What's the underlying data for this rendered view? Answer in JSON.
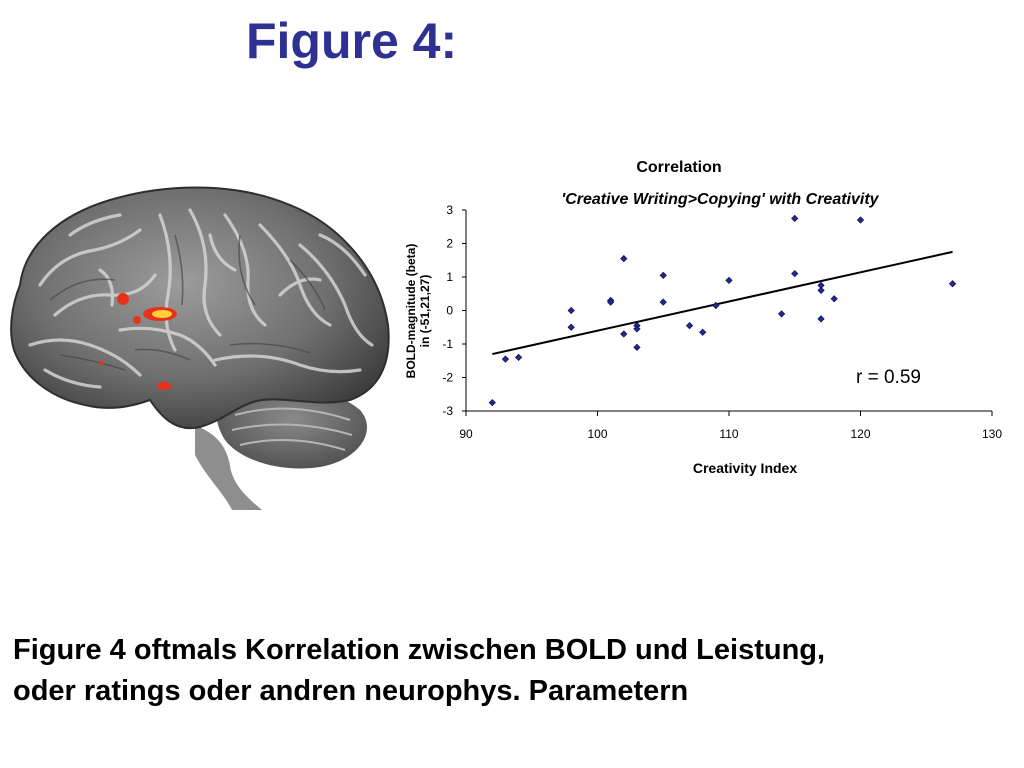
{
  "slide": {
    "title": "Figure 4:",
    "caption_lines": [
      "Figure 4 oftmals Korrelation zwischen BOLD und Leistung,",
      "oder ratings oder andren neurophys. Parametern"
    ]
  },
  "colors": {
    "title": "#2e3192",
    "point": "#1f2a8c",
    "regression_line": "#000000",
    "activation": "#e8311a",
    "activation_hot": "#ffd23a"
  },
  "chart_data": {
    "type": "scatter",
    "title": "Correlation",
    "subtitle": "'Creative Writing>Copying' with Creativity",
    "xlabel": "Creativity Index",
    "ylabel_lines": [
      "BOLD-magnitude (beta)",
      "in (-51,21,27)"
    ],
    "xlim": [
      90,
      130
    ],
    "ylim": [
      -3,
      3
    ],
    "x_ticks": [
      90,
      100,
      110,
      120,
      130
    ],
    "y_ticks": [
      3,
      2,
      1,
      0,
      -1,
      -2,
      -3
    ],
    "grid": false,
    "annotation": "r = 0.59",
    "regression_line": {
      "x": [
        92,
        127
      ],
      "y": [
        -1.3,
        1.75
      ]
    },
    "points": [
      {
        "x": 92,
        "y": -2.75
      },
      {
        "x": 93,
        "y": -1.45
      },
      {
        "x": 94,
        "y": -1.4
      },
      {
        "x": 98,
        "y": 0
      },
      {
        "x": 98,
        "y": -0.5
      },
      {
        "x": 101,
        "y": 0.3
      },
      {
        "x": 101,
        "y": 0.25
      },
      {
        "x": 102,
        "y": 1.55
      },
      {
        "x": 102,
        "y": -0.7
      },
      {
        "x": 103,
        "y": -0.45
      },
      {
        "x": 103,
        "y": -0.55
      },
      {
        "x": 103,
        "y": -1.1
      },
      {
        "x": 105,
        "y": 1.05
      },
      {
        "x": 105,
        "y": 0.25
      },
      {
        "x": 107,
        "y": -0.45
      },
      {
        "x": 108,
        "y": -0.65
      },
      {
        "x": 109,
        "y": 0.15
      },
      {
        "x": 110,
        "y": 0.9
      },
      {
        "x": 114,
        "y": -0.1
      },
      {
        "x": 115,
        "y": 2.75
      },
      {
        "x": 115,
        "y": 1.1
      },
      {
        "x": 117,
        "y": 0.75
      },
      {
        "x": 117,
        "y": 0.6
      },
      {
        "x": 117,
        "y": -0.25
      },
      {
        "x": 118,
        "y": 0.35
      },
      {
        "x": 120,
        "y": 2.7
      },
      {
        "x": 127,
        "y": 0.8
      }
    ]
  }
}
